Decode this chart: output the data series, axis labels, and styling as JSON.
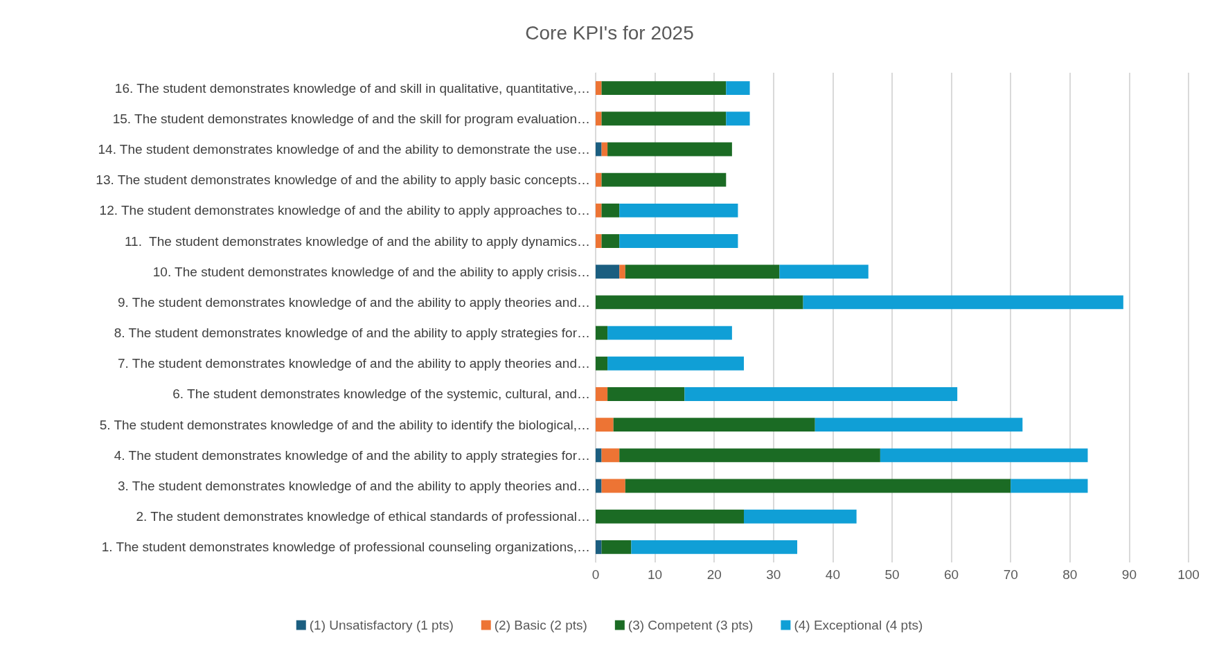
{
  "chart_data": {
    "type": "bar",
    "orientation": "horizontal",
    "stacked": true,
    "title": "Core KPI's for 2025",
    "categories": [
      "16. The student demonstrates knowledge of and skill in qualitative, quantitative,…",
      "15. The student demonstrates knowledge of and the skill for program evaluation…",
      "14. The student demonstrates knowledge of and the ability to demonstrate the use…",
      "13. The student demonstrates knowledge of and the ability to apply basic concepts…",
      "12. The student demonstrates knowledge of and the ability to apply approaches to…",
      "11.  The student demonstrates knowledge of and the ability to apply dynamics…",
      "10. The student demonstrates knowledge of and the ability to apply crisis…",
      "9. The student demonstrates knowledge of and the ability to apply theories and…",
      "8. The student demonstrates knowledge of and the ability to apply strategies for…",
      "7. The student demonstrates knowledge of and the ability to apply theories and…",
      "6. The student demonstrates knowledge of the systemic, cultural, and…",
      "5. The student demonstrates knowledge of and the ability to identify the biological,…",
      "4. The student demonstrates knowledge of and the ability to apply strategies for…",
      "3. The student demonstrates knowledge of and the ability to apply theories and…",
      "2. The student demonstrates knowledge of ethical standards of professional…",
      "1. The student demonstrates knowledge of professional counseling organizations,…"
    ],
    "series": [
      {
        "name": "(1) Unsatisfactory (1 pts)",
        "color": "#1b5e80",
        "values": [
          0,
          0,
          1,
          0,
          0,
          0,
          4,
          0,
          0,
          0,
          0,
          0,
          1,
          1,
          0,
          1
        ]
      },
      {
        "name": "(2) Basic (2 pts)",
        "color": "#ed7434",
        "values": [
          1,
          1,
          1,
          1,
          1,
          1,
          1,
          0,
          0,
          0,
          2,
          3,
          3,
          4,
          0,
          0
        ]
      },
      {
        "name": "(3) Competent (3 pts)",
        "color": "#1b6b24",
        "values": [
          21,
          21,
          21,
          21,
          3,
          3,
          26,
          35,
          2,
          2,
          13,
          34,
          44,
          65,
          25,
          5
        ]
      },
      {
        "name": "(4) Exceptional (4 pts)",
        "color": "#109fd6",
        "values": [
          4,
          4,
          0,
          0,
          20,
          20,
          15,
          54,
          21,
          23,
          46,
          35,
          35,
          13,
          19,
          28
        ]
      }
    ],
    "xlim": [
      0,
      100
    ],
    "xticks": [
      0,
      10,
      20,
      30,
      40,
      50,
      60,
      70,
      80,
      90,
      100
    ],
    "grid": "x",
    "legend": "bottom"
  }
}
